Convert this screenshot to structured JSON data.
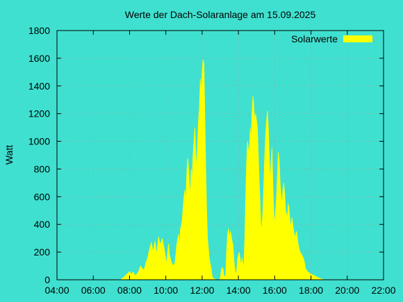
{
  "colors": {
    "background": "#40e0d0",
    "series": "#ffff00",
    "grid": "#a0a0a0",
    "axis": "#000000"
  },
  "chart_data": {
    "type": "area",
    "title": "Werte der Dach-Solaranlage am 15.09.2025",
    "xlabel": "",
    "ylabel": "Watt",
    "x_unit": "hours",
    "xlim": [
      4,
      22
    ],
    "ylim": [
      0,
      1800
    ],
    "grid": true,
    "legend_position": "top-right",
    "x_ticks": [
      {
        "value": 4,
        "label": "04:00"
      },
      {
        "value": 6,
        "label": "06:00"
      },
      {
        "value": 8,
        "label": "08:00"
      },
      {
        "value": 10,
        "label": "10:00"
      },
      {
        "value": 12,
        "label": "12:00"
      },
      {
        "value": 14,
        "label": "14:00"
      },
      {
        "value": 16,
        "label": "16:00"
      },
      {
        "value": 18,
        "label": "18:00"
      },
      {
        "value": 20,
        "label": "20:00"
      },
      {
        "value": 22,
        "label": "22:00"
      }
    ],
    "y_ticks": [
      0,
      200,
      400,
      600,
      800,
      1000,
      1200,
      1400,
      1600,
      1800
    ],
    "series": [
      {
        "name": "Solarwerte",
        "color": "#ffff00",
        "points": [
          [
            7.5,
            0
          ],
          [
            7.6,
            10
          ],
          [
            7.7,
            20
          ],
          [
            7.8,
            35
          ],
          [
            7.9,
            45
          ],
          [
            8.0,
            60
          ],
          [
            8.1,
            40
          ],
          [
            8.2,
            55
          ],
          [
            8.3,
            30
          ],
          [
            8.4,
            40
          ],
          [
            8.5,
            60
          ],
          [
            8.6,
            100
          ],
          [
            8.7,
            80
          ],
          [
            8.8,
            70
          ],
          [
            8.9,
            120
          ],
          [
            9.0,
            160
          ],
          [
            9.1,
            220
          ],
          [
            9.2,
            270
          ],
          [
            9.3,
            200
          ],
          [
            9.4,
            280
          ],
          [
            9.5,
            180
          ],
          [
            9.6,
            310
          ],
          [
            9.7,
            250
          ],
          [
            9.8,
            300
          ],
          [
            9.9,
            230
          ],
          [
            10.0,
            150
          ],
          [
            10.05,
            110
          ],
          [
            10.1,
            200
          ],
          [
            10.15,
            260
          ],
          [
            10.2,
            180
          ],
          [
            10.3,
            130
          ],
          [
            10.4,
            100
          ],
          [
            10.5,
            120
          ],
          [
            10.55,
            180
          ],
          [
            10.6,
            250
          ],
          [
            10.7,
            330
          ],
          [
            10.75,
            250
          ],
          [
            10.8,
            360
          ],
          [
            10.9,
            430
          ],
          [
            10.95,
            520
          ],
          [
            11.0,
            600
          ],
          [
            11.05,
            650
          ],
          [
            11.1,
            550
          ],
          [
            11.15,
            750
          ],
          [
            11.2,
            880
          ],
          [
            11.25,
            820
          ],
          [
            11.3,
            700
          ],
          [
            11.35,
            600
          ],
          [
            11.4,
            800
          ],
          [
            11.45,
            720
          ],
          [
            11.5,
            900
          ],
          [
            11.55,
            1000
          ],
          [
            11.6,
            1100
          ],
          [
            11.65,
            900
          ],
          [
            11.7,
            800
          ],
          [
            11.75,
            1000
          ],
          [
            11.8,
            1150
          ],
          [
            11.85,
            1250
          ],
          [
            11.9,
            1450
          ],
          [
            11.95,
            1350
          ],
          [
            12.0,
            1500
          ],
          [
            12.05,
            1590
          ],
          [
            12.1,
            1560
          ],
          [
            12.15,
            1200
          ],
          [
            12.2,
            800
          ],
          [
            12.25,
            500
          ],
          [
            12.3,
            300
          ],
          [
            12.4,
            150
          ],
          [
            12.5,
            80
          ],
          [
            12.55,
            30
          ],
          [
            12.6,
            10
          ],
          [
            12.8,
            0
          ],
          [
            12.95,
            0
          ],
          [
            13.0,
            10
          ],
          [
            13.05,
            60
          ],
          [
            13.1,
            90
          ],
          [
            13.15,
            80
          ],
          [
            13.2,
            30
          ],
          [
            13.3,
            20
          ],
          [
            13.35,
            200
          ],
          [
            13.4,
            320
          ],
          [
            13.45,
            370
          ],
          [
            13.5,
            300
          ],
          [
            13.55,
            350
          ],
          [
            13.6,
            320
          ],
          [
            13.65,
            280
          ],
          [
            13.7,
            250
          ],
          [
            13.75,
            150
          ],
          [
            13.8,
            80
          ],
          [
            13.85,
            40
          ],
          [
            13.9,
            60
          ],
          [
            13.95,
            150
          ],
          [
            14.0,
            180
          ],
          [
            14.05,
            200
          ],
          [
            14.1,
            150
          ],
          [
            14.15,
            100
          ],
          [
            14.2,
            160
          ],
          [
            14.25,
            120
          ],
          [
            14.3,
            80
          ],
          [
            14.35,
            300
          ],
          [
            14.4,
            600
          ],
          [
            14.45,
            850
          ],
          [
            14.5,
            1000
          ],
          [
            14.55,
            950
          ],
          [
            14.6,
            900
          ],
          [
            14.65,
            1100
          ],
          [
            14.7,
            1000
          ],
          [
            14.75,
            1200
          ],
          [
            14.8,
            1330
          ],
          [
            14.85,
            1250
          ],
          [
            14.9,
            1150
          ],
          [
            14.95,
            1200
          ],
          [
            15.0,
            1150
          ],
          [
            15.05,
            1100
          ],
          [
            15.1,
            900
          ],
          [
            15.15,
            700
          ],
          [
            15.2,
            550
          ],
          [
            15.25,
            350
          ],
          [
            15.3,
            400
          ],
          [
            15.35,
            500
          ],
          [
            15.4,
            700
          ],
          [
            15.45,
            900
          ],
          [
            15.5,
            1050
          ],
          [
            15.55,
            1150
          ],
          [
            15.6,
            1220
          ],
          [
            15.65,
            1100
          ],
          [
            15.7,
            900
          ],
          [
            15.75,
            700
          ],
          [
            15.8,
            850
          ],
          [
            15.85,
            950
          ],
          [
            15.9,
            700
          ],
          [
            15.95,
            500
          ],
          [
            16.0,
            400
          ],
          [
            16.05,
            480
          ],
          [
            16.1,
            600
          ],
          [
            16.15,
            750
          ],
          [
            16.2,
            920
          ],
          [
            16.25,
            850
          ],
          [
            16.3,
            700
          ],
          [
            16.35,
            600
          ],
          [
            16.4,
            550
          ],
          [
            16.45,
            650
          ],
          [
            16.5,
            700
          ],
          [
            16.55,
            620
          ],
          [
            16.6,
            500
          ],
          [
            16.7,
            450
          ],
          [
            16.75,
            550
          ],
          [
            16.8,
            500
          ],
          [
            16.85,
            420
          ],
          [
            16.9,
            380
          ],
          [
            16.95,
            450
          ],
          [
            17.0,
            400
          ],
          [
            17.1,
            300
          ],
          [
            17.2,
            350
          ],
          [
            17.25,
            300
          ],
          [
            17.3,
            250
          ],
          [
            17.4,
            200
          ],
          [
            17.5,
            180
          ],
          [
            17.6,
            150
          ],
          [
            17.65,
            120
          ],
          [
            17.7,
            80
          ],
          [
            17.8,
            60
          ],
          [
            17.9,
            50
          ],
          [
            18.0,
            40
          ],
          [
            18.1,
            35
          ],
          [
            18.2,
            30
          ],
          [
            18.3,
            20
          ],
          [
            18.4,
            15
          ],
          [
            18.5,
            10
          ],
          [
            18.6,
            5
          ],
          [
            18.7,
            0
          ]
        ]
      }
    ]
  }
}
